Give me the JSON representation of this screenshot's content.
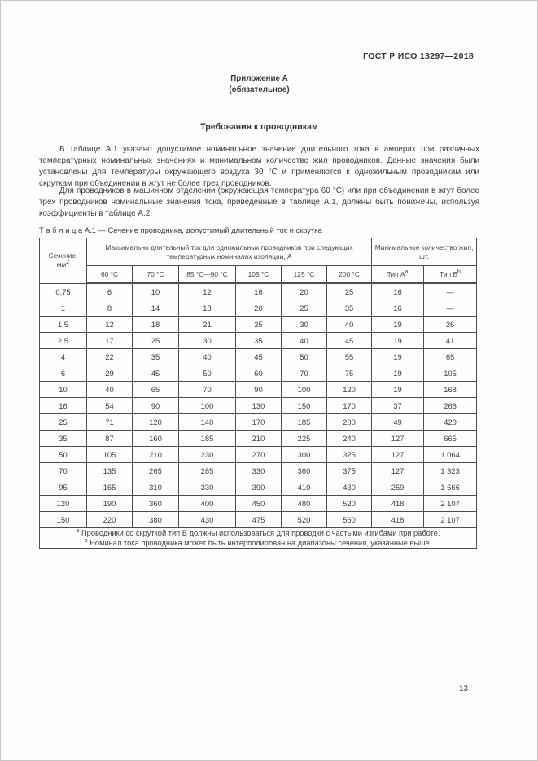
{
  "page": {
    "doc_code": "ГОСТ Р ИСО 13297—2018",
    "annex_title": "Приложение А",
    "annex_subtitle": "(обязательное)",
    "section_title": "Требования к проводникам",
    "paragraph1": "В таблице А.1 указано допустимое номинальное значение длительного тока в амперах при различных температурных номинальных значениях и минимальном количестве жил проводников. Данные значения были установлены для температуры окружающего воздуха 30 °С и применяются к одножильным проводникам или скруткам при объединении в жгут не более трех проводников.",
    "paragraph2": "Для проводников в машинном отделении (окружающая температура 60 °С) или при объединении в жгут более трех проводников номинальные значения тока, приведенные в таблице А.1, должны быть понижены, используя коэффициенты в таблице А.2.",
    "page_number": "13"
  },
  "table": {
    "caption": "Т а б л и ц а   А.1 — Сечение проводника, допустимый длительный ток и скрутка",
    "header": {
      "section_line1": "Сечение,",
      "section_base": "мм",
      "section_sup": "2",
      "current_group": "Максимально длительный ток для одножильных проводников при следующих температурных номиналах изоляции, А",
      "min_group": "Минимальное количество жил, шт.",
      "temps": [
        "60 °С",
        "70 °С",
        "85 °С—90 °С",
        "105 °С",
        "125 °С",
        "200 °С"
      ],
      "type_a_base": "Тип А",
      "type_a_sup": "a",
      "type_b_base": "Тип В",
      "type_b_sup": "b"
    },
    "rows": [
      [
        "0,75",
        "6",
        "10",
        "12",
        "16",
        "20",
        "25",
        "16",
        "—"
      ],
      [
        "1",
        "8",
        "14",
        "18",
        "20",
        "25",
        "35",
        "16",
        "—"
      ],
      [
        "1,5",
        "12",
        "18",
        "21",
        "25",
        "30",
        "40",
        "19",
        "26"
      ],
      [
        "2,5",
        "17",
        "25",
        "30",
        "35",
        "40",
        "45",
        "19",
        "41"
      ],
      [
        "4",
        "22",
        "35",
        "40",
        "45",
        "50",
        "55",
        "19",
        "65"
      ],
      [
        "6",
        "29",
        "45",
        "50",
        "60",
        "70",
        "75",
        "19",
        "105"
      ],
      [
        "10",
        "40",
        "65",
        "70",
        "90",
        "100",
        "120",
        "19",
        "168"
      ],
      [
        "16",
        "54",
        "90",
        "100",
        "130",
        "150",
        "170",
        "37",
        "266"
      ],
      [
        "25",
        "71",
        "120",
        "140",
        "170",
        "185",
        "200",
        "49",
        "420"
      ],
      [
        "35",
        "87",
        "160",
        "185",
        "210",
        "225",
        "240",
        "127",
        "665"
      ],
      [
        "50",
        "105",
        "210",
        "230",
        "270",
        "300",
        "325",
        "127",
        "1 064"
      ],
      [
        "70",
        "135",
        "265",
        "285",
        "330",
        "360",
        "375",
        "127",
        "1 323"
      ],
      [
        "95",
        "165",
        "310",
        "330",
        "390",
        "410",
        "430",
        "259",
        "1 666"
      ],
      [
        "120",
        "190",
        "360",
        "400",
        "450",
        "480",
        "520",
        "418",
        "2 107"
      ],
      [
        "150",
        "220",
        "380",
        "430",
        "475",
        "520",
        "560",
        "418",
        "2 107"
      ]
    ],
    "footnotes": [
      {
        "marker": "a",
        "text": "Проводники со скруткой тип В должны использоваться для проводки с частыми изгибами при работе."
      },
      {
        "marker": "b",
        "text": "Номинал тока проводника может быть интерполирован на диапазоны сечения, указанные выше."
      }
    ]
  }
}
